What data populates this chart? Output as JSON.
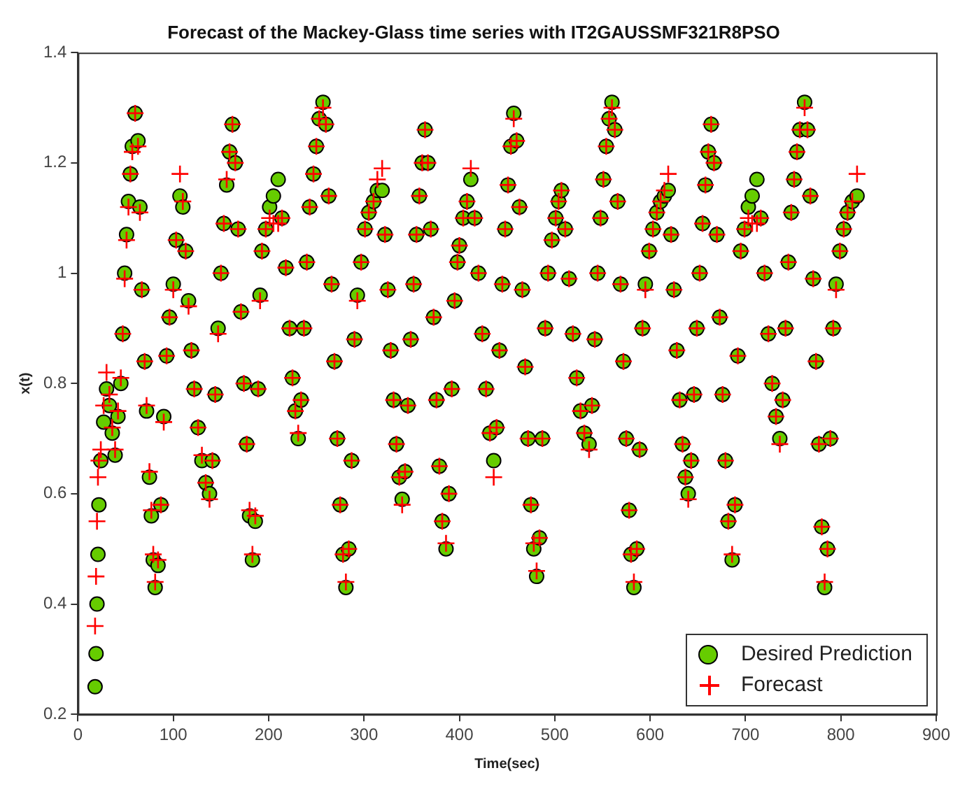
{
  "chart_data": {
    "type": "scatter",
    "title": "Forecast of the Mackey-Glass time series with IT2GAUSSMF321R8PSO",
    "xlabel": "Time(sec)",
    "ylabel": "x(t)",
    "x": [
      18,
      19,
      20,
      21,
      22,
      24,
      27,
      30,
      33,
      36,
      39,
      42,
      45,
      47,
      49,
      51,
      53,
      55,
      57,
      60,
      63,
      65,
      67,
      70,
      72,
      75,
      77,
      79,
      81,
      84,
      87,
      90,
      93,
      96,
      100,
      103,
      107,
      110,
      113,
      116,
      119,
      122,
      126,
      130,
      134,
      138,
      141,
      144,
      147,
      150,
      153,
      156,
      159,
      162,
      165,
      168,
      171,
      174,
      177,
      180,
      183,
      186,
      189,
      191,
      193,
      197,
      201,
      205,
      210,
      214,
      218,
      222,
      225,
      228,
      231,
      234,
      237,
      240,
      243,
      247,
      250,
      253,
      257,
      260,
      263,
      266,
      269,
      272,
      275,
      278,
      281,
      284,
      287,
      290,
      293,
      297,
      301,
      305,
      310,
      314,
      319,
      322,
      325,
      328,
      331,
      334,
      337,
      340,
      343,
      346,
      349,
      352,
      355,
      358,
      361,
      364,
      367,
      370,
      373,
      376,
      379,
      382,
      386,
      389,
      392,
      395,
      398,
      400,
      404,
      408,
      412,
      416,
      420,
      424,
      428,
      432,
      436,
      439,
      442,
      445,
      448,
      451,
      454,
      457,
      460,
      463,
      466,
      469,
      472,
      475,
      478,
      481,
      484,
      487,
      490,
      493,
      497,
      501,
      504,
      507,
      511,
      515,
      519,
      523,
      527,
      531,
      536,
      539,
      542,
      545,
      548,
      551,
      554,
      557,
      560,
      563,
      566,
      569,
      572,
      575,
      578,
      580,
      583,
      586,
      589,
      592,
      595,
      599,
      603,
      607,
      611,
      615,
      619,
      622,
      625,
      628,
      631,
      634,
      637,
      640,
      643,
      646,
      649,
      652,
      655,
      658,
      661,
      664,
      667,
      670,
      673,
      676,
      679,
      682,
      686,
      689,
      692,
      695,
      699,
      703,
      707,
      712,
      716,
      720,
      724,
      728,
      732,
      736,
      739,
      742,
      745,
      748,
      751,
      754,
      757,
      762,
      765,
      768,
      771,
      774,
      777,
      780,
      783,
      786,
      789,
      792,
      795,
      799,
      803,
      807,
      812,
      817
    ],
    "series": [
      {
        "name": "Desired Prediction",
        "color": "#66cc00",
        "marker": "circle",
        "values": [
          0.25,
          0.31,
          0.4,
          0.49,
          0.58,
          0.66,
          0.73,
          0.79,
          0.76,
          0.71,
          0.67,
          0.74,
          0.8,
          0.89,
          1.0,
          1.07,
          1.13,
          1.18,
          1.23,
          1.29,
          1.24,
          1.12,
          0.97,
          0.84,
          0.75,
          0.63,
          0.56,
          0.48,
          0.43,
          0.47,
          0.58,
          0.74,
          0.85,
          0.92,
          0.98,
          1.06,
          1.14,
          1.12,
          1.04,
          0.95,
          0.86,
          0.79,
          0.72,
          0.66,
          0.62,
          0.6,
          0.66,
          0.78,
          0.9,
          1.0,
          1.09,
          1.16,
          1.22,
          1.27,
          1.2,
          1.08,
          0.93,
          0.8,
          0.69,
          0.56,
          0.48,
          0.55,
          0.79,
          0.96,
          1.04,
          1.08,
          1.12,
          1.14,
          1.17,
          1.1,
          1.01,
          0.9,
          0.81,
          0.75,
          0.7,
          0.77,
          0.9,
          1.02,
          1.12,
          1.18,
          1.23,
          1.28,
          1.31,
          1.27,
          1.14,
          0.98,
          0.84,
          0.7,
          0.58,
          0.49,
          0.43,
          0.5,
          0.66,
          0.88,
          0.96,
          1.02,
          1.08,
          1.11,
          1.13,
          1.15,
          1.15,
          1.07,
          0.97,
          0.86,
          0.77,
          0.69,
          0.63,
          0.59,
          0.64,
          0.76,
          0.88,
          0.98,
          1.07,
          1.14,
          1.2,
          1.26,
          1.2,
          1.08,
          0.92,
          0.77,
          0.65,
          0.55,
          0.5,
          0.6,
          0.79,
          0.95,
          1.02,
          1.05,
          1.1,
          1.13,
          1.17,
          1.1,
          1.0,
          0.89,
          0.79,
          0.71,
          0.66,
          0.72,
          0.86,
          0.98,
          1.08,
          1.16,
          1.23,
          1.29,
          1.24,
          1.12,
          0.97,
          0.83,
          0.7,
          0.58,
          0.5,
          0.45,
          0.52,
          0.7,
          0.9,
          1.0,
          1.06,
          1.1,
          1.13,
          1.15,
          1.08,
          0.99,
          0.89,
          0.81,
          0.75,
          0.71,
          0.69,
          0.76,
          0.88,
          1.0,
          1.1,
          1.17,
          1.23,
          1.28,
          1.31,
          1.26,
          1.13,
          0.98,
          0.84,
          0.7,
          0.57,
          0.49,
          0.43,
          0.5,
          0.68,
          0.9,
          0.98,
          1.04,
          1.08,
          1.11,
          1.13,
          1.14,
          1.15,
          1.07,
          0.97,
          0.86,
          0.77,
          0.69,
          0.63,
          0.6,
          0.66,
          0.78,
          0.9,
          1.0,
          1.09,
          1.16,
          1.22,
          1.27,
          1.2,
          1.07,
          0.92,
          0.78,
          0.66,
          0.55,
          0.48,
          0.58,
          0.85,
          1.04,
          1.08,
          1.12,
          1.14,
          1.17,
          1.1,
          1.0,
          0.89,
          0.8,
          0.74,
          0.7,
          0.77,
          0.9,
          1.02,
          1.11,
          1.17,
          1.22,
          1.26,
          1.31,
          1.26,
          1.14,
          0.99,
          0.84,
          0.69,
          0.54,
          0.43,
          0.5,
          0.7,
          0.9,
          0.98,
          1.04,
          1.08,
          1.11,
          1.13,
          1.14
        ]
      },
      {
        "name": "Forecast",
        "color": "#ff0000",
        "marker": "cross",
        "values": [
          0.36,
          0.45,
          0.55,
          0.63,
          0.66,
          0.68,
          0.76,
          0.82,
          0.78,
          0.72,
          0.68,
          0.75,
          0.81,
          0.89,
          0.99,
          1.06,
          1.12,
          1.18,
          1.22,
          1.29,
          1.23,
          1.11,
          0.97,
          0.84,
          0.76,
          0.64,
          0.57,
          0.49,
          0.44,
          0.48,
          0.58,
          0.73,
          0.85,
          0.92,
          0.97,
          1.06,
          1.18,
          1.13,
          1.04,
          0.94,
          0.86,
          0.79,
          0.72,
          0.67,
          0.62,
          0.59,
          0.66,
          0.78,
          0.89,
          1.0,
          1.09,
          1.17,
          1.22,
          1.27,
          1.2,
          1.08,
          0.93,
          0.8,
          0.69,
          0.57,
          0.49,
          0.56,
          0.79,
          0.95,
          1.04,
          1.08,
          1.1,
          1.09,
          1.09,
          1.1,
          1.01,
          0.9,
          0.81,
          0.75,
          0.71,
          0.77,
          0.9,
          1.02,
          1.12,
          1.18,
          1.23,
          1.28,
          1.3,
          1.27,
          1.14,
          0.98,
          0.84,
          0.7,
          0.58,
          0.49,
          0.44,
          0.5,
          0.66,
          0.88,
          0.95,
          1.02,
          1.08,
          1.11,
          1.13,
          1.17,
          1.19,
          1.07,
          0.97,
          0.86,
          0.77,
          0.69,
          0.63,
          0.58,
          0.64,
          0.76,
          0.88,
          0.98,
          1.07,
          1.14,
          1.2,
          1.26,
          1.2,
          1.08,
          0.92,
          0.77,
          0.65,
          0.55,
          0.51,
          0.6,
          0.79,
          0.95,
          1.02,
          1.05,
          1.1,
          1.13,
          1.19,
          1.1,
          1.0,
          0.89,
          0.79,
          0.71,
          0.63,
          0.72,
          0.86,
          0.98,
          1.08,
          1.16,
          1.23,
          1.28,
          1.24,
          1.12,
          0.97,
          0.83,
          0.7,
          0.58,
          0.51,
          0.46,
          0.52,
          0.7,
          0.9,
          1.0,
          1.06,
          1.1,
          1.13,
          1.15,
          1.08,
          0.99,
          0.89,
          0.81,
          0.75,
          0.71,
          0.68,
          0.76,
          0.88,
          1.0,
          1.1,
          1.17,
          1.23,
          1.28,
          1.3,
          1.26,
          1.13,
          0.98,
          0.84,
          0.7,
          0.57,
          0.49,
          0.44,
          0.5,
          0.68,
          0.9,
          0.97,
          1.04,
          1.08,
          1.11,
          1.13,
          1.15,
          1.18,
          1.07,
          0.97,
          0.86,
          0.77,
          0.69,
          0.63,
          0.59,
          0.66,
          0.78,
          0.9,
          1.0,
          1.09,
          1.16,
          1.22,
          1.27,
          1.2,
          1.07,
          0.92,
          0.78,
          0.66,
          0.55,
          0.49,
          0.58,
          0.85,
          1.04,
          1.08,
          1.1,
          1.09,
          1.09,
          1.1,
          1.0,
          0.89,
          0.8,
          0.74,
          0.69,
          0.77,
          0.9,
          1.02,
          1.11,
          1.17,
          1.22,
          1.26,
          1.3,
          1.26,
          1.14,
          0.99,
          0.84,
          0.69,
          0.54,
          0.44,
          0.5,
          0.7,
          0.9,
          0.97,
          1.04,
          1.08,
          1.11,
          1.13,
          1.18
        ]
      }
    ],
    "xlim": [
      0,
      900
    ],
    "xticks": [
      0,
      100,
      200,
      300,
      400,
      500,
      600,
      700,
      800,
      900
    ],
    "ylim": [
      0.2,
      1.4
    ],
    "yticks": [
      0.2,
      0.4,
      0.6,
      0.8,
      1,
      1.2,
      1.4
    ],
    "grid": false,
    "legend": "bottom right"
  }
}
